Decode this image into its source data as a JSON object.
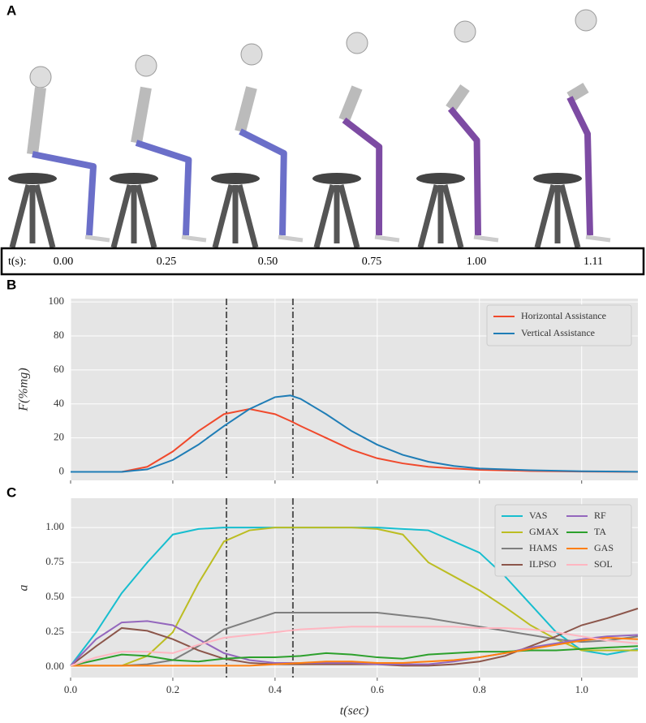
{
  "panel_labels": [
    "A",
    "B",
    "C"
  ],
  "timeline": {
    "label": "t(s):",
    "times": [
      "0.00",
      "0.25",
      "0.50",
      "0.75",
      "1.00",
      "1.11"
    ]
  },
  "chart_data": [
    {
      "type": "line",
      "ylabel": "F(%mg)",
      "xlim": [
        0,
        1.11
      ],
      "xticks": [
        0,
        0.2,
        0.4,
        0.6,
        0.8,
        1.0
      ],
      "ylim": [
        -5,
        102
      ],
      "yticks": [
        0,
        20,
        40,
        60,
        80,
        100
      ],
      "grid": true,
      "legend": "upper right",
      "vlines": [
        0.305,
        0.435
      ],
      "x": [
        0,
        0.05,
        0.1,
        0.15,
        0.2,
        0.25,
        0.3,
        0.35,
        0.4,
        0.43,
        0.45,
        0.5,
        0.55,
        0.6,
        0.65,
        0.7,
        0.75,
        0.8,
        0.9,
        1.0,
        1.11
      ],
      "series": [
        {
          "name": "Horizontal Assistance",
          "color": "#f0492c",
          "values": [
            0,
            0,
            0,
            3,
            12,
            24,
            34,
            37,
            34,
            30,
            27,
            20,
            13,
            8,
            5,
            3,
            2,
            1.2,
            0.5,
            0.2,
            0
          ]
        },
        {
          "name": "Vertical Assistance",
          "color": "#1f7db6",
          "values": [
            0,
            0,
            0,
            1.5,
            7,
            16,
            27,
            37,
            44,
            45,
            43,
            34,
            24,
            16,
            10,
            6,
            3.5,
            2,
            1,
            0.4,
            0.1
          ]
        }
      ]
    },
    {
      "type": "line",
      "xlabel": "t(sec)",
      "ylabel": "a",
      "xlim": [
        0,
        1.11
      ],
      "xticks": [
        {
          "value": 0,
          "label": "0.0"
        },
        {
          "value": 0.2,
          "label": "0.2"
        },
        {
          "value": 0.4,
          "label": "0.4"
        },
        {
          "value": 0.6,
          "label": "0.6"
        },
        {
          "value": 0.8,
          "label": "0.8"
        },
        {
          "value": 1.0,
          "label": "1.0"
        }
      ],
      "ylim": [
        -0.075,
        1.21
      ],
      "yticks": [
        {
          "value": 0,
          "label": "0.00"
        },
        {
          "value": 0.25,
          "label": "0.25"
        },
        {
          "value": 0.5,
          "label": "0.50"
        },
        {
          "value": 0.75,
          "label": "0.75"
        },
        {
          "value": 1.0,
          "label": "1.00"
        }
      ],
      "grid": true,
      "legend": "upper right",
      "vlines": [
        0.305,
        0.435
      ],
      "x": [
        0,
        0.05,
        0.1,
        0.15,
        0.2,
        0.25,
        0.3,
        0.35,
        0.4,
        0.45,
        0.5,
        0.55,
        0.6,
        0.65,
        0.7,
        0.75,
        0.8,
        0.85,
        0.9,
        0.95,
        1.0,
        1.05,
        1.11
      ],
      "series": [
        {
          "name": "VAS",
          "color": "#17becf",
          "values": [
            0.01,
            0.25,
            0.53,
            0.75,
            0.95,
            0.99,
            1,
            1,
            1,
            1,
            1,
            1,
            1,
            0.99,
            0.98,
            0.9,
            0.82,
            0.65,
            0.45,
            0.25,
            0.12,
            0.09,
            0.13
          ]
        },
        {
          "name": "GMAX",
          "color": "#bcbd22",
          "values": [
            0.01,
            0.01,
            0.01,
            0.08,
            0.25,
            0.6,
            0.9,
            0.98,
            1,
            1,
            1,
            1,
            0.99,
            0.95,
            0.75,
            0.65,
            0.55,
            0.43,
            0.3,
            0.2,
            0.12,
            0.12,
            0.12
          ]
        },
        {
          "name": "HAMS",
          "color": "#7f7f7f",
          "values": [
            0.01,
            0.01,
            0.01,
            0.02,
            0.05,
            0.15,
            0.27,
            0.33,
            0.39,
            0.39,
            0.39,
            0.39,
            0.39,
            0.37,
            0.35,
            0.32,
            0.29,
            0.26,
            0.23,
            0.2,
            0.18,
            0.19,
            0.22
          ]
        },
        {
          "name": "ILPSO",
          "color": "#8c564b",
          "values": [
            0.01,
            0.15,
            0.28,
            0.26,
            0.2,
            0.12,
            0.06,
            0.03,
            0.02,
            0.02,
            0.02,
            0.02,
            0.02,
            0.01,
            0.01,
            0.02,
            0.04,
            0.08,
            0.15,
            0.22,
            0.3,
            0.35,
            0.42
          ]
        },
        {
          "name": "RF",
          "color": "#9467bd",
          "values": [
            0.01,
            0.2,
            0.32,
            0.33,
            0.3,
            0.2,
            0.1,
            0.05,
            0.03,
            0.03,
            0.03,
            0.03,
            0.02,
            0.02,
            0.02,
            0.04,
            0.07,
            0.1,
            0.14,
            0.17,
            0.2,
            0.22,
            0.23
          ]
        },
        {
          "name": "TA",
          "color": "#2ca02c",
          "values": [
            0.01,
            0.05,
            0.09,
            0.08,
            0.05,
            0.04,
            0.06,
            0.07,
            0.07,
            0.08,
            0.1,
            0.09,
            0.07,
            0.06,
            0.09,
            0.1,
            0.11,
            0.11,
            0.12,
            0.12,
            0.13,
            0.14,
            0.15
          ]
        },
        {
          "name": "GAS",
          "color": "#ff7f0e",
          "values": [
            0.01,
            0.01,
            0.01,
            0.01,
            0.01,
            0.01,
            0.01,
            0.01,
            0.02,
            0.03,
            0.04,
            0.04,
            0.03,
            0.03,
            0.04,
            0.05,
            0.07,
            0.1,
            0.13,
            0.16,
            0.19,
            0.21,
            0.2
          ]
        },
        {
          "name": "SOL",
          "color": "#ffb6c1",
          "values": [
            0.01,
            0.07,
            0.11,
            0.11,
            0.1,
            0.16,
            0.21,
            0.23,
            0.25,
            0.27,
            0.28,
            0.29,
            0.29,
            0.29,
            0.29,
            0.29,
            0.28,
            0.28,
            0.27,
            0.25,
            0.22,
            0.19,
            0.17
          ]
        }
      ]
    }
  ]
}
